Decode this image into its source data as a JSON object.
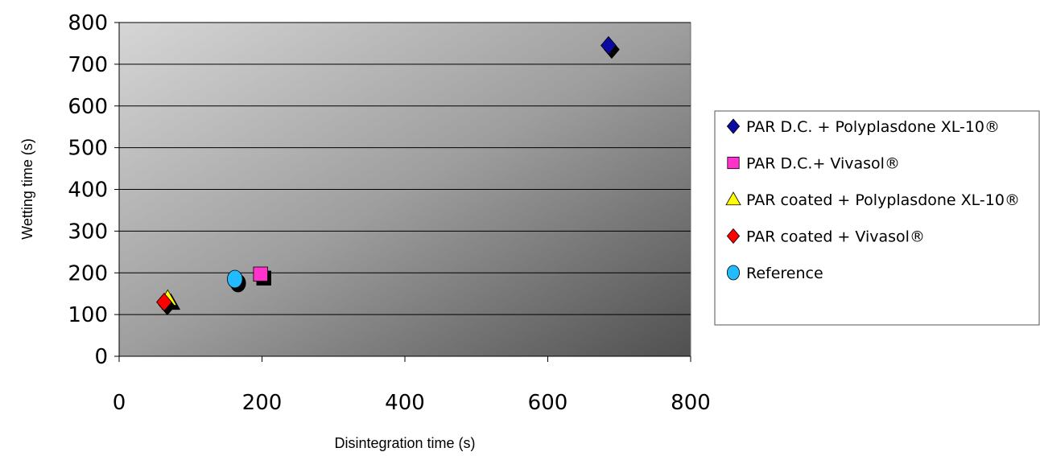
{
  "chart_data": {
    "type": "scatter",
    "title": "",
    "xlabel": "Disintegration time (s)",
    "ylabel": "Wetting time (s)",
    "xlim": [
      0,
      800
    ],
    "ylim": [
      0,
      800
    ],
    "xticks": [
      0,
      200,
      400,
      600,
      800
    ],
    "yticks": [
      0,
      100,
      200,
      300,
      400,
      500,
      600,
      700,
      800
    ],
    "grid": "horizontal",
    "legend_position": "right",
    "series": [
      {
        "name": "PAR D.C. + Polyplasdone XL-10®",
        "marker": "diamond",
        "color": "#0a0aa0",
        "points": [
          {
            "x": 685,
            "y": 745
          }
        ]
      },
      {
        "name": "PAR D.C.+ Vivasol®",
        "marker": "square",
        "color": "#ff33cc",
        "points": [
          {
            "x": 198,
            "y": 197
          }
        ]
      },
      {
        "name": "PAR coated + Polyplasdone XL-10®",
        "marker": "triangle",
        "color": "#ffff00",
        "points": [
          {
            "x": 68,
            "y": 138
          }
        ]
      },
      {
        "name": "PAR coated + Vivasol®",
        "marker": "diamond",
        "color": "#ff0000",
        "points": [
          {
            "x": 63,
            "y": 130
          }
        ]
      },
      {
        "name": "Reference",
        "marker": "circle",
        "color": "#22bbff",
        "points": [
          {
            "x": 162,
            "y": 185
          }
        ]
      }
    ]
  }
}
